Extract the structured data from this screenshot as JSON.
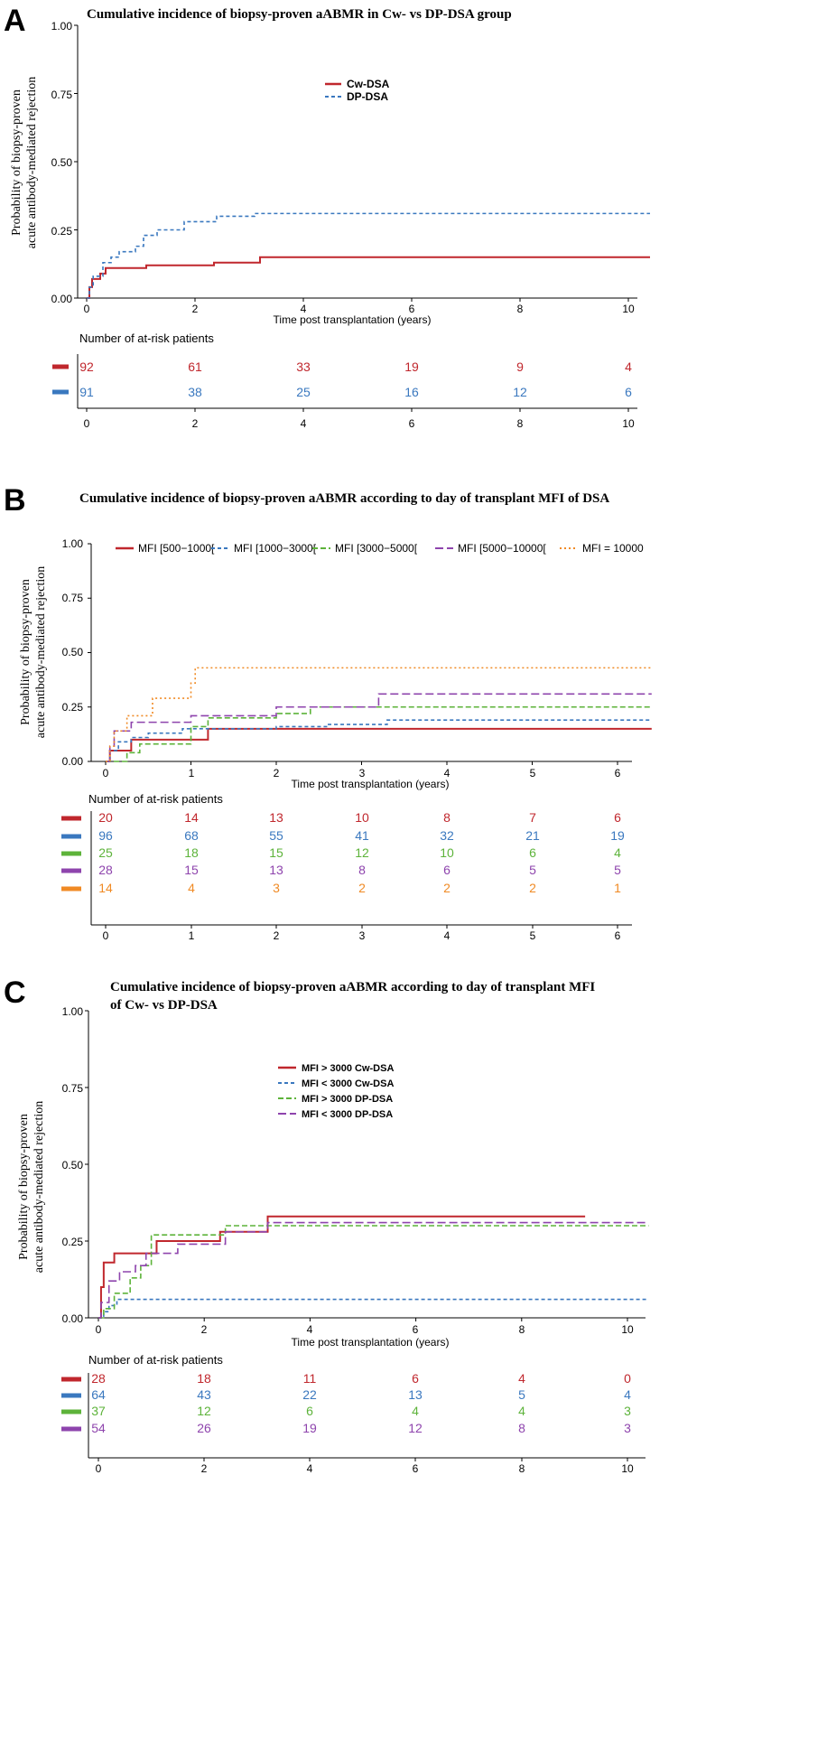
{
  "colors": {
    "red": "#c0272d",
    "blue": "#3a78bf",
    "green": "#5db33a",
    "purple": "#8e44ad",
    "orange": "#f08a24",
    "axis": "#000000"
  },
  "chart_data": [
    {
      "panel": "A",
      "type": "line",
      "title": "Cumulative incidence of biopsy-proven aABMR in Cw- vs DP-DSA group",
      "ylabel_line1": "Probability of biopsy-proven",
      "ylabel_line2": "acute antibody-mediated rejection",
      "xlabel": "Time post transplantation (years)",
      "ylim": [
        0,
        1
      ],
      "xlim": [
        0,
        10.4
      ],
      "yticks": [
        "0.00",
        "0.25",
        "0.50",
        "0.75",
        "1.00"
      ],
      "xticks": [
        "0",
        "2",
        "4",
        "6",
        "8",
        "10"
      ],
      "legend_position": "top-center",
      "series": [
        {
          "name": "Cw-DSA",
          "color": "#c0272d",
          "dash": "solid",
          "steps": [
            [
              0,
              0
            ],
            [
              0.05,
              0.04
            ],
            [
              0.1,
              0.07
            ],
            [
              0.25,
              0.09
            ],
            [
              0.35,
              0.11
            ],
            [
              1.1,
              0.12
            ],
            [
              2.35,
              0.13
            ],
            [
              3.2,
              0.15
            ],
            [
              10.4,
              0.15
            ]
          ]
        },
        {
          "name": "DP-DSA",
          "color": "#3a78bf",
          "dash": "short",
          "steps": [
            [
              0,
              0
            ],
            [
              0.05,
              0.04
            ],
            [
              0.12,
              0.08
            ],
            [
              0.3,
              0.13
            ],
            [
              0.45,
              0.15
            ],
            [
              0.6,
              0.17
            ],
            [
              0.9,
              0.19
            ],
            [
              1.05,
              0.23
            ],
            [
              1.3,
              0.25
            ],
            [
              1.8,
              0.28
            ],
            [
              2.4,
              0.3
            ],
            [
              3.1,
              0.31
            ],
            [
              10.4,
              0.31
            ]
          ]
        }
      ],
      "risk_table_title": "Number of at-risk patients",
      "risk_table": [
        {
          "color": "#c0272d",
          "values": [
            "92",
            "61",
            "33",
            "19",
            "9",
            "4"
          ]
        },
        {
          "color": "#3a78bf",
          "values": [
            "91",
            "38",
            "25",
            "16",
            "12",
            "6"
          ]
        }
      ]
    },
    {
      "panel": "B",
      "type": "line",
      "title": "Cumulative incidence of  biopsy-proven aABMR according to day of transplant MFI of DSA",
      "ylabel_line1": "Probability of biopsy-proven",
      "ylabel_line2": "acute antibody-mediated rejection",
      "xlabel": "Time post transplantation (years)",
      "ylim": [
        0,
        1
      ],
      "xlim": [
        0,
        6.4
      ],
      "yticks": [
        "0.00",
        "0.25",
        "0.50",
        "0.75",
        "1.00"
      ],
      "xticks": [
        "0",
        "1",
        "2",
        "3",
        "4",
        "5",
        "6"
      ],
      "legend_position": "top",
      "series": [
        {
          "name": "MFI [500−1000[",
          "color": "#c0272d",
          "dash": "solid",
          "steps": [
            [
              0,
              0
            ],
            [
              0.05,
              0.05
            ],
            [
              0.3,
              0.1
            ],
            [
              1.2,
              0.15
            ],
            [
              6.4,
              0.15
            ]
          ]
        },
        {
          "name": "MFI [1000−3000[",
          "color": "#3a78bf",
          "dash": "short",
          "steps": [
            [
              0,
              0
            ],
            [
              0.05,
              0.05
            ],
            [
              0.15,
              0.09
            ],
            [
              0.3,
              0.11
            ],
            [
              0.5,
              0.13
            ],
            [
              0.9,
              0.15
            ],
            [
              2.0,
              0.16
            ],
            [
              2.6,
              0.17
            ],
            [
              3.3,
              0.19
            ],
            [
              6.4,
              0.19
            ]
          ]
        },
        {
          "name": "MFI [3000−5000[",
          "color": "#5db33a",
          "dash": "medium",
          "steps": [
            [
              0,
              0
            ],
            [
              0.25,
              0.04
            ],
            [
              0.4,
              0.08
            ],
            [
              1.0,
              0.16
            ],
            [
              1.2,
              0.2
            ],
            [
              2.0,
              0.22
            ],
            [
              2.4,
              0.25
            ],
            [
              6.4,
              0.25
            ]
          ]
        },
        {
          "name": "MFI [5000−10000[",
          "color": "#8e44ad",
          "dash": "long",
          "steps": [
            [
              0,
              0
            ],
            [
              0.05,
              0.07
            ],
            [
              0.1,
              0.14
            ],
            [
              0.3,
              0.18
            ],
            [
              1.0,
              0.21
            ],
            [
              2.0,
              0.25
            ],
            [
              3.2,
              0.31
            ],
            [
              6.4,
              0.31
            ]
          ]
        },
        {
          "name": "MFI = 10000",
          "color": "#f08a24",
          "dash": "dotted",
          "steps": [
            [
              0,
              0
            ],
            [
              0.05,
              0.07
            ],
            [
              0.1,
              0.14
            ],
            [
              0.25,
              0.21
            ],
            [
              0.55,
              0.29
            ],
            [
              1.0,
              0.36
            ],
            [
              1.05,
              0.43
            ],
            [
              6.4,
              0.43
            ]
          ]
        }
      ],
      "risk_table_title": "Number of at-risk patients",
      "risk_table": [
        {
          "color": "#c0272d",
          "values": [
            "20",
            "14",
            "13",
            "10",
            "8",
            "7",
            "6"
          ]
        },
        {
          "color": "#3a78bf",
          "values": [
            "96",
            "68",
            "55",
            "41",
            "32",
            "21",
            "19"
          ]
        },
        {
          "color": "#5db33a",
          "values": [
            "25",
            "18",
            "15",
            "12",
            "10",
            "6",
            "4"
          ]
        },
        {
          "color": "#8e44ad",
          "values": [
            "28",
            "15",
            "13",
            "8",
            "6",
            "5",
            "5"
          ]
        },
        {
          "color": "#f08a24",
          "values": [
            "14",
            "4",
            "3",
            "2",
            "2",
            "2",
            "1"
          ]
        }
      ]
    },
    {
      "panel": "C",
      "type": "line",
      "title": "Cumulative incidence of  biopsy-proven aABMR according to day of transplant MFI",
      "title_line2": "of Cw- vs DP-DSA",
      "ylabel_line1": "Probability of biopsy-proven",
      "ylabel_line2": "acute antibody-mediated rejection",
      "xlabel": "Time post transplantation (years)",
      "ylim": [
        0,
        1
      ],
      "xlim": [
        0,
        10.4
      ],
      "yticks": [
        "0.00",
        "0.25",
        "0.50",
        "0.75",
        "1.00"
      ],
      "xticks": [
        "0",
        "2",
        "4",
        "6",
        "8",
        "10"
      ],
      "legend_position": "top-center",
      "series": [
        {
          "name": "MFI > 3000 Cw-DSA",
          "color": "#c0272d",
          "dash": "solid",
          "steps": [
            [
              0,
              0
            ],
            [
              0.05,
              0.1
            ],
            [
              0.1,
              0.18
            ],
            [
              0.3,
              0.21
            ],
            [
              1.1,
              0.25
            ],
            [
              2.3,
              0.28
            ],
            [
              3.2,
              0.33
            ],
            [
              9.2,
              0.33
            ]
          ]
        },
        {
          "name": "MFI < 3000 Cw-DSA",
          "color": "#3a78bf",
          "dash": "short",
          "steps": [
            [
              0,
              0
            ],
            [
              0.1,
              0.02
            ],
            [
              0.2,
              0.04
            ],
            [
              0.35,
              0.06
            ],
            [
              10.4,
              0.06
            ]
          ]
        },
        {
          "name": "MFI > 3000 DP-DSA",
          "color": "#5db33a",
          "dash": "medium",
          "steps": [
            [
              0,
              0
            ],
            [
              0.1,
              0.03
            ],
            [
              0.3,
              0.08
            ],
            [
              0.6,
              0.13
            ],
            [
              0.8,
              0.17
            ],
            [
              1.0,
              0.27
            ],
            [
              2.4,
              0.3
            ],
            [
              10.4,
              0.3
            ]
          ]
        },
        {
          "name": "MFI < 3000 DP-DSA",
          "color": "#8e44ad",
          "dash": "long",
          "steps": [
            [
              0,
              0
            ],
            [
              0.05,
              0.05
            ],
            [
              0.2,
              0.12
            ],
            [
              0.4,
              0.15
            ],
            [
              0.7,
              0.17
            ],
            [
              0.9,
              0.21
            ],
            [
              1.5,
              0.24
            ],
            [
              2.4,
              0.28
            ],
            [
              3.2,
              0.31
            ],
            [
              10.4,
              0.31
            ]
          ]
        }
      ],
      "risk_table_title": "Number of at-risk patients",
      "risk_table": [
        {
          "color": "#c0272d",
          "values": [
            "28",
            "18",
            "11",
            "6",
            "4",
            "0"
          ]
        },
        {
          "color": "#3a78bf",
          "values": [
            "64",
            "43",
            "22",
            "13",
            "5",
            "4"
          ]
        },
        {
          "color": "#5db33a",
          "values": [
            "37",
            "12",
            "6",
            "4",
            "4",
            "3"
          ]
        },
        {
          "color": "#8e44ad",
          "values": [
            "54",
            "26",
            "19",
            "12",
            "8",
            "3"
          ]
        }
      ]
    }
  ]
}
